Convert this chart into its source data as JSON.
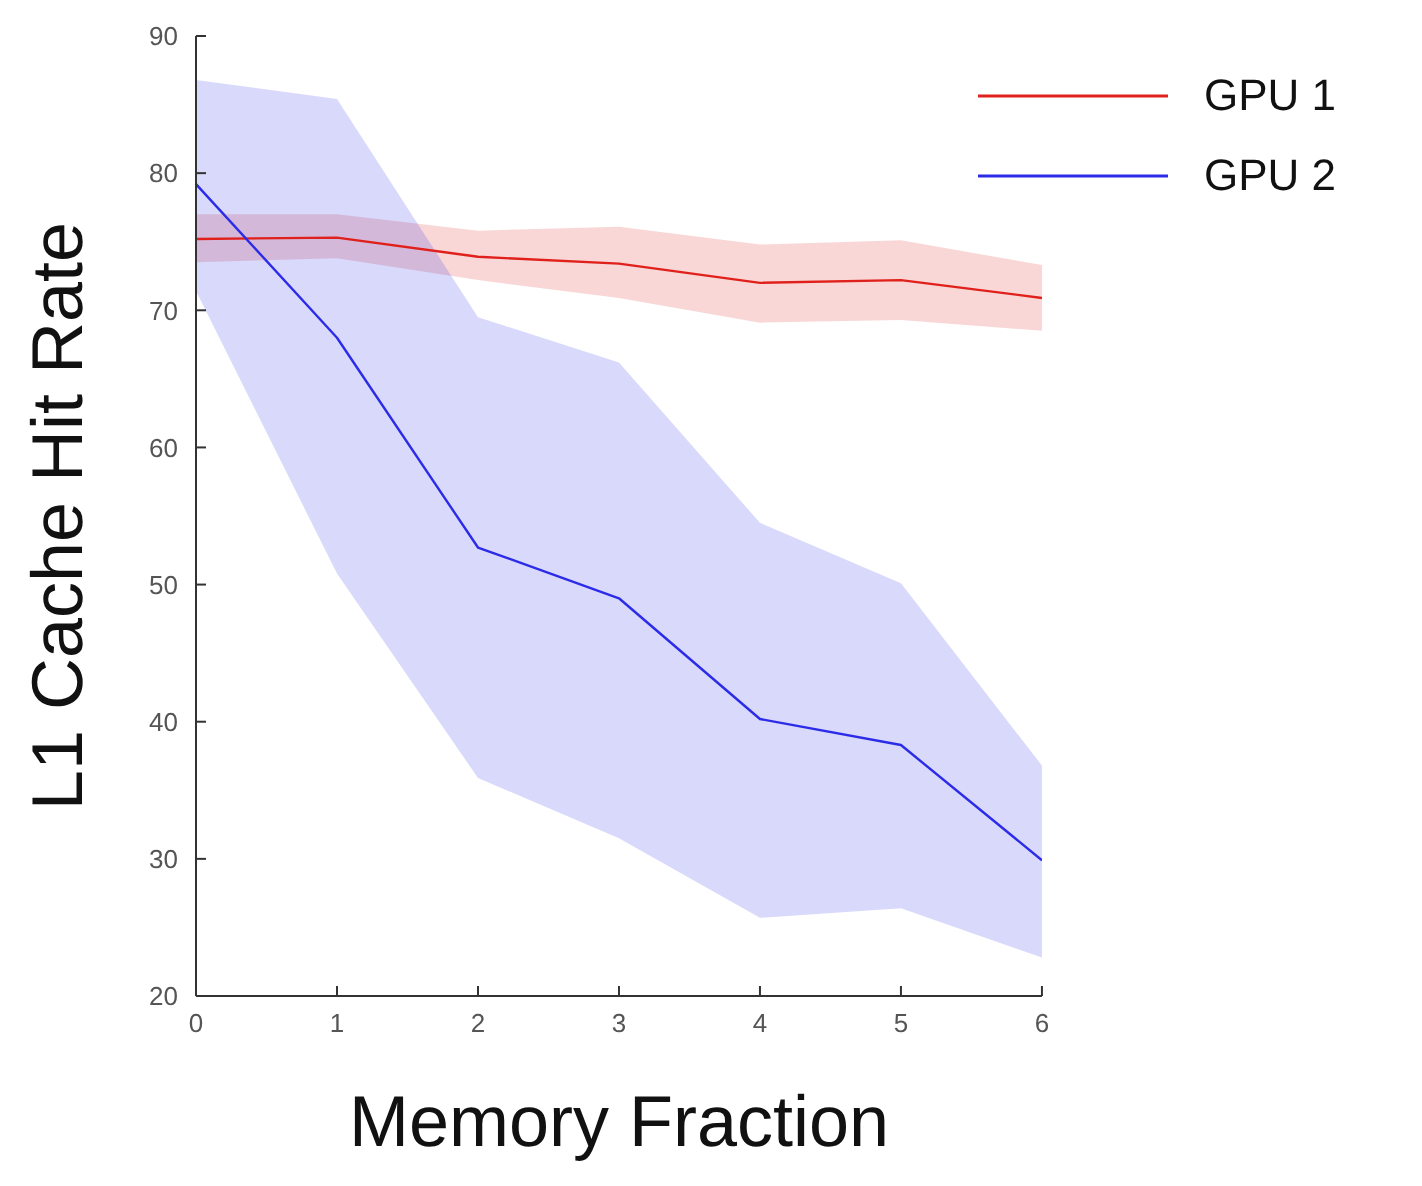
{
  "chart_data": {
    "type": "line",
    "xlabel": "Memory Fraction",
    "ylabel": "L1 Cache Hit Rate",
    "x": [
      0,
      1,
      2,
      3,
      4,
      5,
      6
    ],
    "xlim": [
      0,
      6
    ],
    "xticks": [
      0,
      1,
      2,
      3,
      4,
      5,
      6
    ],
    "ylim": [
      20,
      90
    ],
    "yticks": [
      20,
      30,
      40,
      50,
      60,
      70,
      80,
      90
    ],
    "grid": false,
    "legend": "top right",
    "marker": "none",
    "line_style": "solid",
    "series": [
      {
        "name": "GPU 1",
        "color": "#e0201b",
        "values": [
          75.2,
          75.3,
          73.9,
          73.4,
          72.0,
          72.2,
          70.9
        ],
        "lower": [
          73.5,
          73.8,
          72.2,
          70.9,
          69.1,
          69.3,
          68.5
        ],
        "upper": [
          77.0,
          77.0,
          75.8,
          76.1,
          74.8,
          75.1,
          73.3
        ]
      },
      {
        "name": "GPU 2",
        "color": "#2b2be8",
        "values": [
          79.2,
          68.0,
          52.7,
          49.0,
          40.2,
          38.3,
          29.9
        ],
        "lower": [
          71.4,
          50.8,
          35.9,
          31.5,
          25.7,
          26.4,
          22.8
        ],
        "upper": [
          86.8,
          85.4,
          69.5,
          66.2,
          54.5,
          50.1,
          36.8
        ]
      }
    ]
  }
}
